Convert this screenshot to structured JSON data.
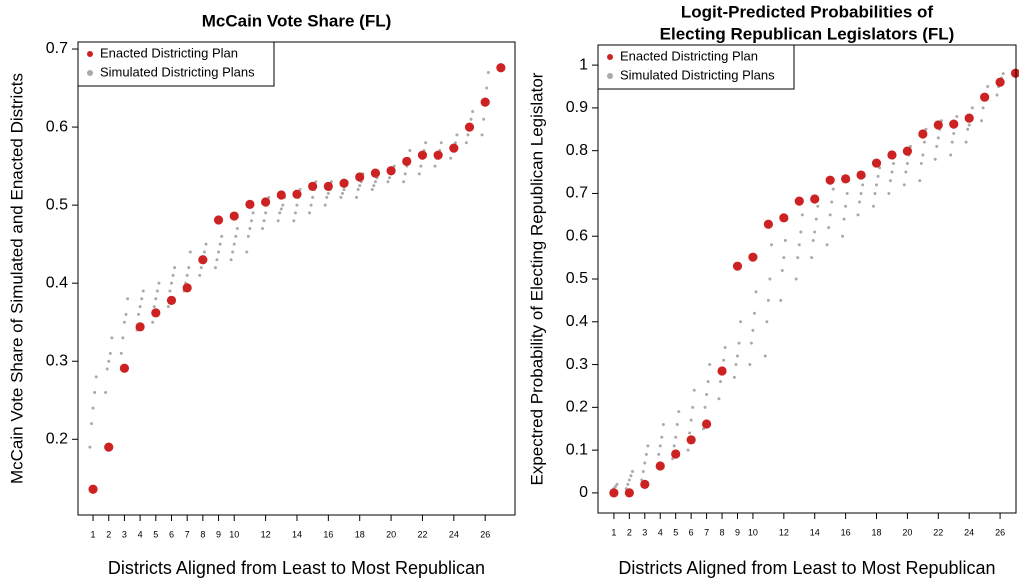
{
  "chart_data": [
    {
      "type": "scatter",
      "title": [
        "McCain Vote Share (FL)"
      ],
      "x_label": "Districts Aligned from Least to Most Republican",
      "y_label": "McCain Vote Share of Simulated and Enacted Districts",
      "xlim": [
        0.04,
        27.9
      ],
      "ylim": [
        0.103,
        0.709
      ],
      "xticks": [
        1,
        2,
        3,
        4,
        5,
        6,
        7,
        8,
        9,
        10,
        12,
        14,
        16,
        18,
        20,
        22,
        24,
        26
      ],
      "yticks": [
        0.2,
        0.3,
        0.4,
        0.5,
        0.6,
        0.7
      ],
      "legend": "top-left",
      "series": [
        {
          "name": "Simulated Districting Plans",
          "color": "#aaaaaa",
          "x": [
            0.8,
            0.9,
            1,
            1.1,
            1.2,
            1.8,
            1.9,
            2,
            2.1,
            2.2,
            2.8,
            2.9,
            3,
            3.1,
            3.2,
            3.8,
            3.9,
            4,
            4.1,
            4.2,
            4.8,
            4.9,
            5,
            5.1,
            5.2,
            5.8,
            5.9,
            6,
            6.1,
            6.2,
            6.8,
            6.9,
            7,
            7.1,
            7.2,
            7.8,
            7.9,
            8,
            8.1,
            8.2,
            8.8,
            8.9,
            9,
            9.1,
            9.2,
            9.8,
            9.9,
            10,
            10.1,
            10.2,
            10.8,
            10.9,
            11,
            11.1,
            11.2,
            11.8,
            11.9,
            12,
            12.1,
            12.2,
            12.8,
            12.9,
            13,
            13.1,
            13.2,
            13.8,
            13.9,
            14,
            14.1,
            14.2,
            14.8,
            14.9,
            15,
            15.1,
            15.2,
            15.8,
            15.9,
            16,
            16.1,
            16.2,
            16.8,
            16.9,
            17,
            17.1,
            17.2,
            17.8,
            17.9,
            18,
            18.1,
            18.2,
            18.8,
            18.9,
            19,
            19.1,
            19.2,
            19.8,
            19.9,
            20,
            20.1,
            20.2,
            20.8,
            20.9,
            21,
            21.1,
            21.2,
            21.8,
            21.9,
            22,
            22.1,
            22.2,
            22.8,
            22.9,
            23,
            23.1,
            23.2,
            23.8,
            23.9,
            24,
            24.1,
            24.2,
            24.8,
            24.9,
            25,
            25.1,
            25.2,
            25.8,
            25.9,
            26,
            26.1,
            26.2
          ],
          "values": [
            0.19,
            0.22,
            0.24,
            0.26,
            0.28,
            0.26,
            0.29,
            0.3,
            0.31,
            0.33,
            0.31,
            0.33,
            0.35,
            0.36,
            0.38,
            0.34,
            0.36,
            0.37,
            0.38,
            0.39,
            0.35,
            0.37,
            0.38,
            0.39,
            0.4,
            0.37,
            0.39,
            0.4,
            0.41,
            0.42,
            0.39,
            0.4,
            0.41,
            0.42,
            0.44,
            0.41,
            0.42,
            0.43,
            0.44,
            0.45,
            0.42,
            0.43,
            0.44,
            0.45,
            0.46,
            0.43,
            0.44,
            0.45,
            0.46,
            0.47,
            0.44,
            0.46,
            0.47,
            0.48,
            0.49,
            0.47,
            0.48,
            0.49,
            0.5,
            0.51,
            0.48,
            0.49,
            0.495,
            0.5,
            0.51,
            0.48,
            0.49,
            0.5,
            0.51,
            0.52,
            0.49,
            0.5,
            0.51,
            0.52,
            0.53,
            0.5,
            0.51,
            0.515,
            0.52,
            0.53,
            0.51,
            0.515,
            0.52,
            0.525,
            0.53,
            0.51,
            0.52,
            0.525,
            0.53,
            0.54,
            0.52,
            0.525,
            0.53,
            0.535,
            0.54,
            0.53,
            0.535,
            0.54,
            0.545,
            0.55,
            0.53,
            0.54,
            0.55,
            0.56,
            0.57,
            0.54,
            0.55,
            0.56,
            0.57,
            0.58,
            0.55,
            0.56,
            0.565,
            0.57,
            0.58,
            0.56,
            0.57,
            0.575,
            0.58,
            0.59,
            0.58,
            0.59,
            0.6,
            0.61,
            0.62,
            0.59,
            0.61,
            0.63,
            0.65,
            0.67
          ]
        },
        {
          "name": "Enacted Districting Plan",
          "color": "#cc2222",
          "x": [
            1,
            2,
            3,
            4,
            5,
            6,
            7,
            8,
            9,
            10,
            11,
            12,
            13,
            14,
            15,
            16,
            17,
            18,
            19,
            20,
            21,
            22,
            23,
            24,
            25,
            26,
            27
          ],
          "values": [
            0.136,
            0.19,
            0.291,
            0.344,
            0.362,
            0.378,
            0.394,
            0.43,
            0.481,
            0.486,
            0.501,
            0.504,
            0.513,
            0.514,
            0.524,
            0.524,
            0.528,
            0.536,
            0.541,
            0.544,
            0.556,
            0.564,
            0.564,
            0.573,
            0.6,
            0.632,
            0.676
          ]
        }
      ]
    },
    {
      "type": "scatter",
      "title": [
        "Logit-Predicted Probabilities of",
        "Electing Republican Legislators (FL)"
      ],
      "x_label": "Districts Aligned from Least to Most Republican",
      "y_label": "Expectred Probability of Electing Republican Legislator",
      "xlim": [
        -0.03,
        27.03
      ],
      "ylim": [
        -0.047,
        1.047
      ],
      "xticks": [
        1,
        2,
        3,
        4,
        5,
        6,
        7,
        8,
        9,
        10,
        12,
        14,
        16,
        18,
        20,
        22,
        24,
        26
      ],
      "yticks": [
        0,
        0.1,
        0.2,
        0.3,
        0.4,
        0.5,
        0.6,
        0.7,
        0.8,
        0.9,
        1
      ],
      "legend": "top-left",
      "series": [
        {
          "name": "Simulated Districting Plans",
          "color": "#aaaaaa",
          "x": [
            0.8,
            0.9,
            1,
            1.1,
            1.2,
            1.8,
            1.9,
            2,
            2.1,
            2.2,
            2.8,
            2.9,
            3,
            3.1,
            3.2,
            3.8,
            3.9,
            4,
            4.1,
            4.2,
            4.8,
            4.9,
            5,
            5.1,
            5.2,
            5.8,
            5.9,
            6,
            6.1,
            6.2,
            6.8,
            6.9,
            7,
            7.1,
            7.2,
            7.8,
            7.9,
            8,
            8.1,
            8.2,
            8.8,
            8.9,
            9,
            9.1,
            9.2,
            9.8,
            9.9,
            10,
            10.1,
            10.2,
            10.8,
            10.9,
            11,
            11.1,
            11.2,
            11.8,
            11.9,
            12,
            12.1,
            12.2,
            12.8,
            12.9,
            13,
            13.1,
            13.2,
            13.8,
            13.9,
            14,
            14.1,
            14.2,
            14.8,
            14.9,
            15,
            15.1,
            15.2,
            15.8,
            15.9,
            16,
            16.1,
            16.2,
            16.8,
            16.9,
            17,
            17.1,
            17.2,
            17.8,
            17.9,
            18,
            18.1,
            18.2,
            18.8,
            18.9,
            19,
            19.1,
            19.2,
            19.8,
            19.9,
            20,
            20.1,
            20.2,
            20.8,
            20.9,
            21,
            21.1,
            21.2,
            21.8,
            21.9,
            22,
            22.1,
            22.2,
            22.8,
            22.9,
            23,
            23.1,
            23.2,
            23.8,
            23.9,
            24,
            24.1,
            24.2,
            24.8,
            24.9,
            25,
            25.1,
            25.2,
            25.8,
            25.9,
            26,
            26.1,
            26.2
          ],
          "values": [
            0.0,
            0.005,
            0.01,
            0.015,
            0.02,
            0.01,
            0.02,
            0.03,
            0.04,
            0.05,
            0.03,
            0.05,
            0.07,
            0.09,
            0.11,
            0.06,
            0.09,
            0.11,
            0.13,
            0.16,
            0.08,
            0.11,
            0.13,
            0.16,
            0.19,
            0.1,
            0.14,
            0.17,
            0.2,
            0.24,
            0.15,
            0.2,
            0.23,
            0.26,
            0.3,
            0.22,
            0.26,
            0.29,
            0.31,
            0.34,
            0.27,
            0.3,
            0.32,
            0.35,
            0.4,
            0.3,
            0.35,
            0.38,
            0.42,
            0.47,
            0.32,
            0.4,
            0.45,
            0.5,
            0.58,
            0.45,
            0.52,
            0.55,
            0.59,
            0.64,
            0.5,
            0.55,
            0.58,
            0.61,
            0.65,
            0.55,
            0.59,
            0.61,
            0.64,
            0.67,
            0.58,
            0.62,
            0.65,
            0.68,
            0.71,
            0.6,
            0.64,
            0.67,
            0.7,
            0.73,
            0.65,
            0.68,
            0.7,
            0.72,
            0.74,
            0.67,
            0.7,
            0.72,
            0.74,
            0.76,
            0.7,
            0.73,
            0.75,
            0.77,
            0.79,
            0.72,
            0.75,
            0.77,
            0.79,
            0.81,
            0.73,
            0.77,
            0.79,
            0.82,
            0.85,
            0.78,
            0.81,
            0.83,
            0.85,
            0.87,
            0.79,
            0.82,
            0.84,
            0.86,
            0.88,
            0.82,
            0.85,
            0.86,
            0.88,
            0.9,
            0.87,
            0.9,
            0.92,
            0.93,
            0.95,
            0.93,
            0.95,
            0.96,
            0.97,
            0.98
          ]
        },
        {
          "name": "Enacted Districting Plan",
          "color": "#cc2222",
          "x": [
            1,
            2,
            3,
            4,
            5,
            6,
            7,
            8,
            9,
            10,
            11,
            12,
            13,
            14,
            15,
            16,
            17,
            18,
            19,
            20,
            21,
            22,
            23,
            24,
            25,
            26,
            27
          ],
          "values": [
            0.0,
            0.0,
            0.02,
            0.063,
            0.091,
            0.124,
            0.161,
            0.285,
            0.53,
            0.551,
            0.628,
            0.643,
            0.682,
            0.687,
            0.731,
            0.734,
            0.743,
            0.771,
            0.79,
            0.799,
            0.839,
            0.86,
            0.862,
            0.876,
            0.925,
            0.96,
            0.981
          ]
        }
      ]
    }
  ]
}
